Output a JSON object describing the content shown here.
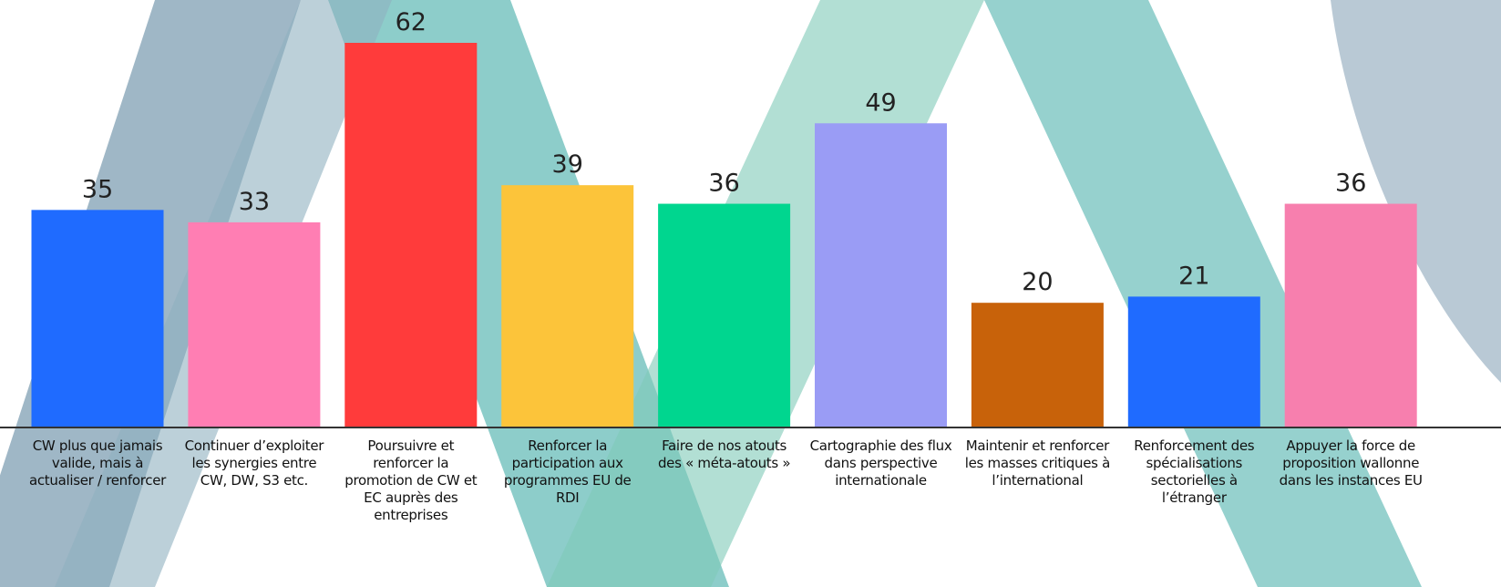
{
  "chart_data": {
    "type": "bar",
    "categories": [
      "CW plus que jamais valide, mais à actualiser / renforcer",
      "Continuer d’exploiter les synergies entre CW, DW, S3 etc.",
      "Poursuivre et renforcer la promotion de CW et EC auprès des entreprises",
      "Renforcer la participation aux programmes EU de RDI",
      "Faire de nos atouts des « méta-atouts »",
      "Cartographie des flux dans perspective internationale",
      "Maintenir et renforcer les masses critiques à l’international",
      "Renforcement des spécialisations sectorielles à l’étranger",
      "Appuyer la force de proposition wallonne dans les instances EU"
    ],
    "values": [
      35,
      33,
      62,
      39,
      36,
      49,
      20,
      21,
      36
    ],
    "colors": [
      "#1f6bff",
      "#ff7eb3",
      "#ff3b3b",
      "#fcc43a",
      "#00d68f",
      "#9a9cf5",
      "#c8620a",
      "#1f6bff",
      "#f77fae"
    ]
  }
}
